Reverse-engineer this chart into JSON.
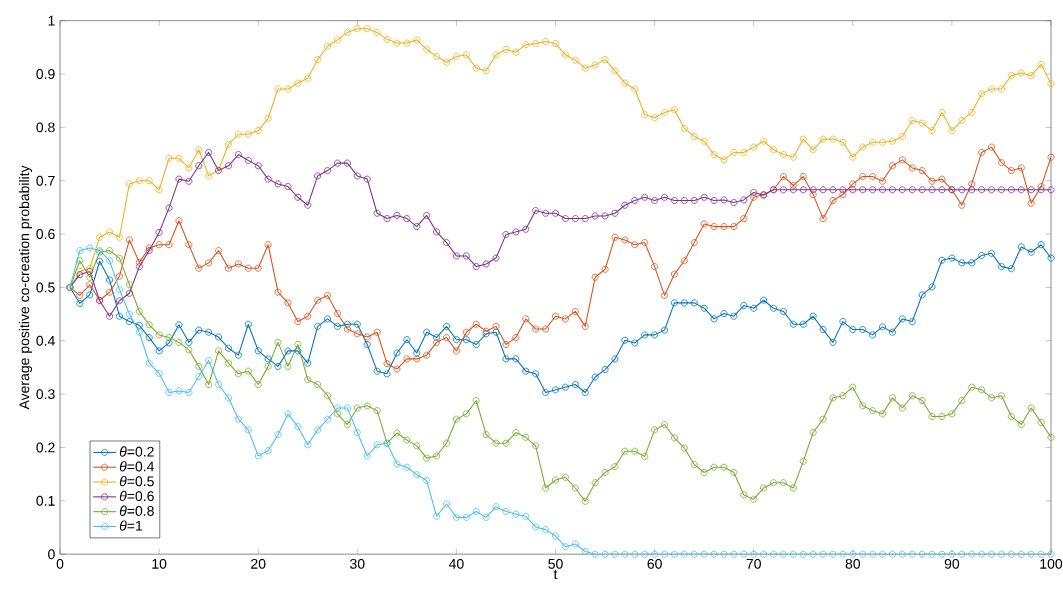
{
  "chart_data": {
    "type": "line",
    "xlabel": "t",
    "ylabel": "Average positive co-creation probability",
    "x": [
      1,
      2,
      3,
      4,
      5,
      6,
      7,
      8,
      9,
      10,
      11,
      12,
      13,
      14,
      15,
      16,
      17,
      18,
      19,
      20,
      21,
      22,
      23,
      24,
      25,
      26,
      27,
      28,
      29,
      30,
      31,
      32,
      33,
      34,
      35,
      36,
      37,
      38,
      39,
      40,
      41,
      42,
      43,
      44,
      45,
      46,
      47,
      48,
      49,
      50,
      51,
      52,
      53,
      54,
      55,
      56,
      57,
      58,
      59,
      60,
      61,
      62,
      63,
      64,
      65,
      66,
      67,
      68,
      69,
      70,
      71,
      72,
      73,
      74,
      75,
      76,
      77,
      78,
      79,
      80,
      81,
      82,
      83,
      84,
      85,
      86,
      87,
      88,
      89,
      90,
      91,
      92,
      93,
      94,
      95,
      96,
      97,
      98,
      99,
      100
    ],
    "xlim": [
      0,
      100
    ],
    "xticks": [
      0,
      10,
      20,
      30,
      40,
      50,
      60,
      70,
      80,
      90,
      100
    ],
    "ylim": [
      0,
      1
    ],
    "yticks": [
      0,
      0.1,
      0.2,
      0.3,
      0.4,
      0.5,
      0.6,
      0.7,
      0.8,
      0.9,
      1
    ],
    "grid": false,
    "legend": "bottom left",
    "marker": "circle",
    "line_style": "solid",
    "series": [
      {
        "name": "*θ*=0.2",
        "color": "#0072bd",
        "values": [
          0.5,
          0.47,
          0.486,
          0.549,
          0.514,
          0.446,
          0.436,
          0.429,
          0.406,
          0.381,
          0.396,
          0.43,
          0.397,
          0.42,
          0.416,
          0.407,
          0.386,
          0.373,
          0.431,
          0.381,
          0.366,
          0.352,
          0.381,
          0.381,
          0.358,
          0.427,
          0.441,
          0.427,
          0.431,
          0.431,
          0.393,
          0.343,
          0.338,
          0.377,
          0.402,
          0.377,
          0.416,
          0.406,
          0.427,
          0.402,
          0.402,
          0.393,
          0.413,
          0.416,
          0.366,
          0.366,
          0.343,
          0.338,
          0.303,
          0.308,
          0.313,
          0.318,
          0.303,
          0.332,
          0.346,
          0.366,
          0.401,
          0.396,
          0.411,
          0.411,
          0.42,
          0.471,
          0.471,
          0.471,
          0.461,
          0.441,
          0.451,
          0.446,
          0.466,
          0.461,
          0.476,
          0.461,
          0.455,
          0.431,
          0.431,
          0.446,
          0.421,
          0.397,
          0.436,
          0.421,
          0.421,
          0.411,
          0.426,
          0.416,
          0.441,
          0.436,
          0.486,
          0.501,
          0.551,
          0.555,
          0.546,
          0.546,
          0.56,
          0.564,
          0.539,
          0.535,
          0.576,
          0.566,
          0.58,
          0.555
        ]
      },
      {
        "name": "*θ*=0.4",
        "color": "#d95319",
        "values": [
          0.5,
          0.485,
          0.505,
          0.476,
          0.491,
          0.521,
          0.589,
          0.547,
          0.574,
          0.58,
          0.58,
          0.625,
          0.58,
          0.536,
          0.546,
          0.569,
          0.536,
          0.544,
          0.536,
          0.536,
          0.58,
          0.491,
          0.471,
          0.436,
          0.446,
          0.476,
          0.485,
          0.451,
          0.422,
          0.413,
          0.407,
          0.416,
          0.357,
          0.347,
          0.366,
          0.366,
          0.373,
          0.397,
          0.406,
          0.381,
          0.416,
          0.431,
          0.418,
          0.427,
          0.393,
          0.406,
          0.441,
          0.422,
          0.422,
          0.446,
          0.441,
          0.455,
          0.427,
          0.519,
          0.534,
          0.594,
          0.589,
          0.58,
          0.584,
          0.539,
          0.485,
          0.525,
          0.55,
          0.584,
          0.619,
          0.614,
          0.614,
          0.614,
          0.629,
          0.669,
          0.674,
          0.683,
          0.708,
          0.691,
          0.708,
          0.674,
          0.629,
          0.663,
          0.674,
          0.694,
          0.708,
          0.708,
          0.699,
          0.728,
          0.739,
          0.724,
          0.719,
          0.699,
          0.703,
          0.683,
          0.654,
          0.694,
          0.753,
          0.763,
          0.734,
          0.719,
          0.724,
          0.658,
          0.689,
          0.744
        ]
      },
      {
        "name": "*θ*=0.5",
        "color": "#edb120",
        "values": [
          0.5,
          0.53,
          0.536,
          0.594,
          0.604,
          0.594,
          0.694,
          0.7,
          0.7,
          0.683,
          0.742,
          0.742,
          0.724,
          0.758,
          0.709,
          0.72,
          0.768,
          0.787,
          0.787,
          0.794,
          0.817,
          0.872,
          0.872,
          0.883,
          0.892,
          0.927,
          0.952,
          0.964,
          0.978,
          0.985,
          0.985,
          0.978,
          0.965,
          0.958,
          0.958,
          0.964,
          0.946,
          0.933,
          0.922,
          0.933,
          0.936,
          0.911,
          0.906,
          0.936,
          0.946,
          0.941,
          0.955,
          0.957,
          0.961,
          0.957,
          0.936,
          0.926,
          0.911,
          0.917,
          0.927,
          0.906,
          0.883,
          0.872,
          0.824,
          0.818,
          0.828,
          0.833,
          0.798,
          0.783,
          0.774,
          0.749,
          0.739,
          0.753,
          0.753,
          0.763,
          0.774,
          0.758,
          0.749,
          0.744,
          0.778,
          0.758,
          0.778,
          0.778,
          0.772,
          0.744,
          0.763,
          0.772,
          0.772,
          0.774,
          0.783,
          0.813,
          0.808,
          0.794,
          0.828,
          0.794,
          0.813,
          0.828,
          0.863,
          0.872,
          0.872,
          0.897,
          0.902,
          0.897,
          0.918,
          0.882
        ]
      },
      {
        "name": "*θ*=0.6",
        "color": "#7e2f8e",
        "values": [
          0.5,
          0.524,
          0.53,
          0.475,
          0.446,
          0.475,
          0.489,
          0.539,
          0.569,
          0.603,
          0.649,
          0.703,
          0.699,
          0.728,
          0.753,
          0.719,
          0.728,
          0.749,
          0.738,
          0.728,
          0.703,
          0.694,
          0.689,
          0.669,
          0.654,
          0.709,
          0.719,
          0.733,
          0.733,
          0.709,
          0.703,
          0.639,
          0.629,
          0.635,
          0.629,
          0.614,
          0.635,
          0.604,
          0.584,
          0.559,
          0.559,
          0.539,
          0.544,
          0.555,
          0.599,
          0.604,
          0.609,
          0.644,
          0.639,
          0.639,
          0.629,
          0.629,
          0.629,
          0.634,
          0.634,
          0.639,
          0.654,
          0.663,
          0.669,
          0.663,
          0.669,
          0.663,
          0.663,
          0.663,
          0.669,
          0.663,
          0.664,
          0.659,
          0.664,
          0.678,
          0.673,
          0.683,
          0.683,
          0.683,
          0.683,
          0.683,
          0.683,
          0.683,
          0.683,
          0.683,
          0.683,
          0.683,
          0.683,
          0.683,
          0.683,
          0.683,
          0.683,
          0.683,
          0.683,
          0.683,
          0.683,
          0.683,
          0.683,
          0.683,
          0.683,
          0.683,
          0.683,
          0.683,
          0.683,
          0.683
        ]
      },
      {
        "name": "*θ*=0.8",
        "color": "#77ac30",
        "values": [
          0.5,
          0.55,
          0.519,
          0.566,
          0.569,
          0.555,
          0.505,
          0.455,
          0.43,
          0.411,
          0.406,
          0.397,
          0.383,
          0.352,
          0.318,
          0.381,
          0.358,
          0.338,
          0.343,
          0.318,
          0.352,
          0.397,
          0.352,
          0.393,
          0.327,
          0.318,
          0.297,
          0.263,
          0.243,
          0.274,
          0.278,
          0.269,
          0.208,
          0.227,
          0.214,
          0.203,
          0.18,
          0.184,
          0.208,
          0.253,
          0.263,
          0.288,
          0.224,
          0.208,
          0.208,
          0.228,
          0.219,
          0.203,
          0.124,
          0.139,
          0.144,
          0.124,
          0.099,
          0.134,
          0.153,
          0.164,
          0.193,
          0.193,
          0.183,
          0.233,
          0.243,
          0.218,
          0.199,
          0.168,
          0.153,
          0.163,
          0.163,
          0.153,
          0.111,
          0.103,
          0.124,
          0.134,
          0.134,
          0.124,
          0.174,
          0.228,
          0.253,
          0.293,
          0.297,
          0.313,
          0.278,
          0.269,
          0.263,
          0.293,
          0.274,
          0.297,
          0.288,
          0.258,
          0.258,
          0.263,
          0.288,
          0.313,
          0.308,
          0.293,
          0.297,
          0.258,
          0.243,
          0.274,
          0.247,
          0.219
        ]
      },
      {
        "name": "*θ*=1",
        "color": "#4dbeee",
        "values": [
          0.5,
          0.569,
          0.574,
          0.569,
          0.55,
          0.496,
          0.45,
          0.416,
          0.358,
          0.339,
          0.303,
          0.306,
          0.303,
          0.333,
          0.363,
          0.318,
          0.293,
          0.253,
          0.233,
          0.184,
          0.194,
          0.224,
          0.263,
          0.239,
          0.205,
          0.233,
          0.253,
          0.274,
          0.274,
          0.228,
          0.184,
          0.205,
          0.208,
          0.169,
          0.163,
          0.149,
          0.138,
          0.071,
          0.094,
          0.069,
          0.069,
          0.08,
          0.069,
          0.089,
          0.08,
          0.075,
          0.071,
          0.051,
          0.046,
          0.034,
          0.014,
          0.019,
          0.005,
          0,
          0,
          0,
          0,
          0,
          0,
          0,
          0,
          0,
          0,
          0,
          0,
          0,
          0,
          0,
          0,
          0,
          0,
          0,
          0,
          0,
          0,
          0,
          0,
          0,
          0,
          0,
          0,
          0,
          0,
          0,
          0,
          0,
          0,
          0,
          0,
          0,
          0,
          0,
          0,
          0,
          0,
          0,
          0,
          0,
          0,
          0
        ]
      }
    ]
  }
}
